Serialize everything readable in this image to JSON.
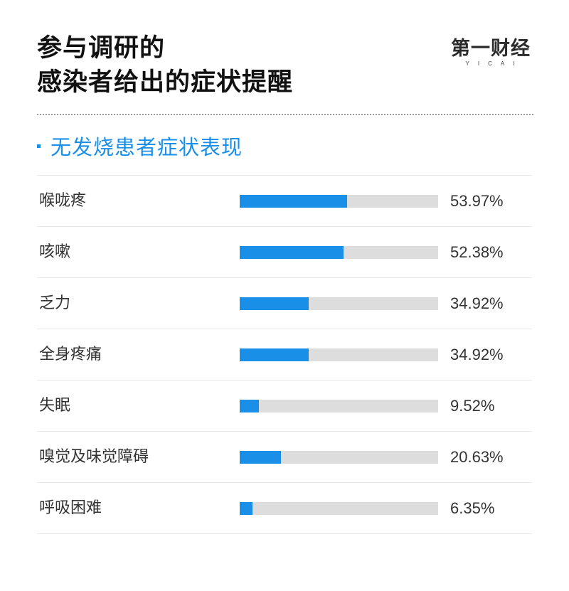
{
  "title": {
    "line1": "参与调研的",
    "line2": "感染者给出的症状提醒"
  },
  "logo": {
    "main": "第一财经",
    "sub": "YICAI"
  },
  "section": {
    "title": "无发烧患者症状表现"
  },
  "colors": {
    "accent": "#1a8fe8",
    "track": "#dddddd"
  },
  "chart_data": {
    "type": "bar",
    "orientation": "horizontal",
    "title": "无发烧患者症状表现",
    "categories": [
      "喉咙疼",
      "咳嗽",
      "乏力",
      "全身疼痛",
      "失眠",
      "嗅觉及味觉障碍",
      "呼吸困难"
    ],
    "values": [
      53.97,
      52.38,
      34.92,
      34.92,
      9.52,
      20.63,
      6.35
    ],
    "value_labels": [
      "53.97%",
      "52.38%",
      "34.92%",
      "34.92%",
      "9.52%",
      "20.63%",
      "6.35%"
    ],
    "xlim": [
      0,
      100
    ],
    "unit": "%",
    "grid": false,
    "legend": "none"
  }
}
